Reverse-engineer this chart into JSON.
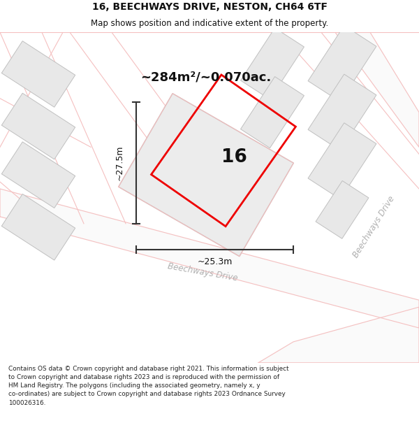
{
  "title_line1": "16, BEECHWAYS DRIVE, NESTON, CH64 6TF",
  "title_line2": "Map shows position and indicative extent of the property.",
  "area_text": "~284m²/~0.070ac.",
  "label_number": "16",
  "dim_width": "~25.3m",
  "dim_height": "~27.5m",
  "road_label1": "Beechways Drive",
  "road_label2": "Beechways Drive",
  "copyright_text": "Contains OS data © Crown copyright and database right 2021. This information is subject\nto Crown copyright and database rights 2023 and is reproduced with the permission of\nHM Land Registry. The polygons (including the associated geometry, namely x, y\nco-ordinates) are subject to Crown copyright and database rights 2023 Ordnance Survey\n100026316.",
  "bg_color": "#ffffff",
  "map_bg": "#ffffff",
  "road_line_color": "#f5c0c0",
  "road_fill_color": "#fafafa",
  "building_fill": "#e8e8e8",
  "building_stroke": "#c0c0c0",
  "plot_fill": "#e8e8e8",
  "plot_stroke": "#b0b0b0",
  "property_stroke": "#ee0000",
  "dim_line_color": "#333333",
  "text_color": "#111111",
  "road_text_color": "#b0b0b0"
}
